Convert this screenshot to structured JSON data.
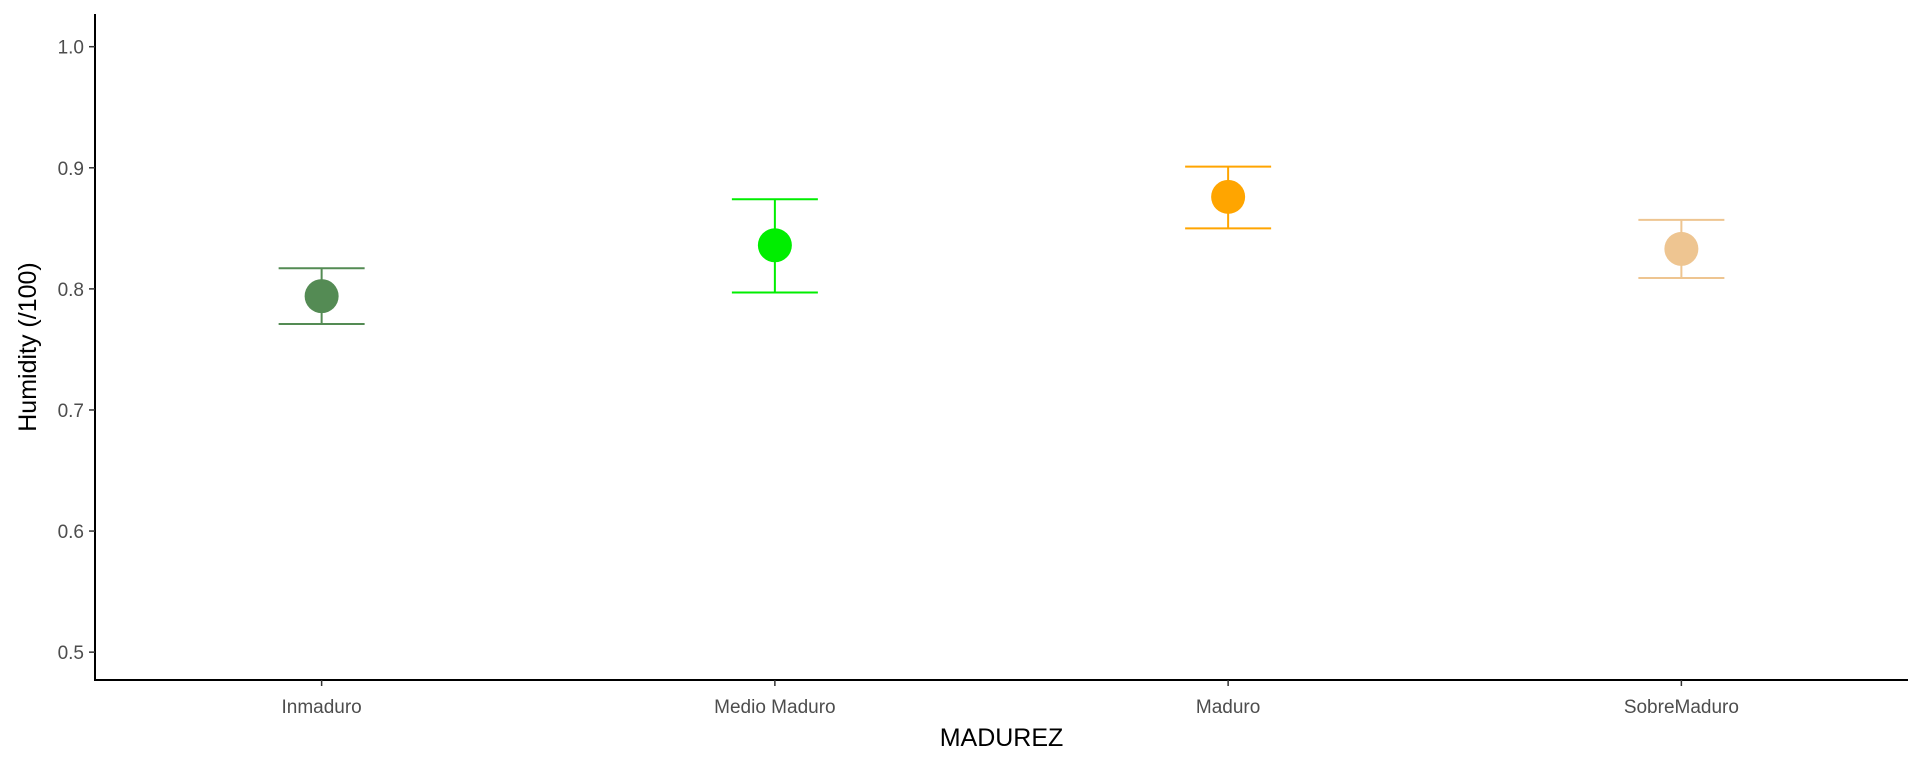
{
  "chart_data": {
    "type": "scatter",
    "subtype": "point-with-errorbars",
    "title": "",
    "xlabel": "MADUREZ",
    "ylabel": "Humidity (/100)",
    "ylim": [
      0.477,
      1.027
    ],
    "yticks": [
      0.5,
      0.6,
      0.7,
      0.8,
      0.9,
      1.0
    ],
    "ytick_labels": [
      "0.5",
      "0.6",
      "0.7",
      "0.8",
      "0.9",
      "1.0"
    ],
    "grid": false,
    "legend": "none",
    "categories": [
      "Inmaduro",
      "Medio Maduro",
      "Maduro",
      "SobreMaduro"
    ],
    "points": [
      {
        "category": "Inmaduro",
        "y": 0.794,
        "ymin": 0.771,
        "ymax": 0.817,
        "color": "#548B54"
      },
      {
        "category": "Medio Maduro",
        "y": 0.836,
        "ymin": 0.797,
        "ymax": 0.874,
        "color": "#00EE00"
      },
      {
        "category": "Maduro",
        "y": 0.876,
        "ymin": 0.85,
        "ymax": 0.901,
        "color": "#FFA500"
      },
      {
        "category": "SobreMaduro",
        "y": 0.833,
        "ymin": 0.809,
        "ymax": 0.857,
        "color": "#EEC591"
      }
    ],
    "axis_color": "#000000"
  }
}
